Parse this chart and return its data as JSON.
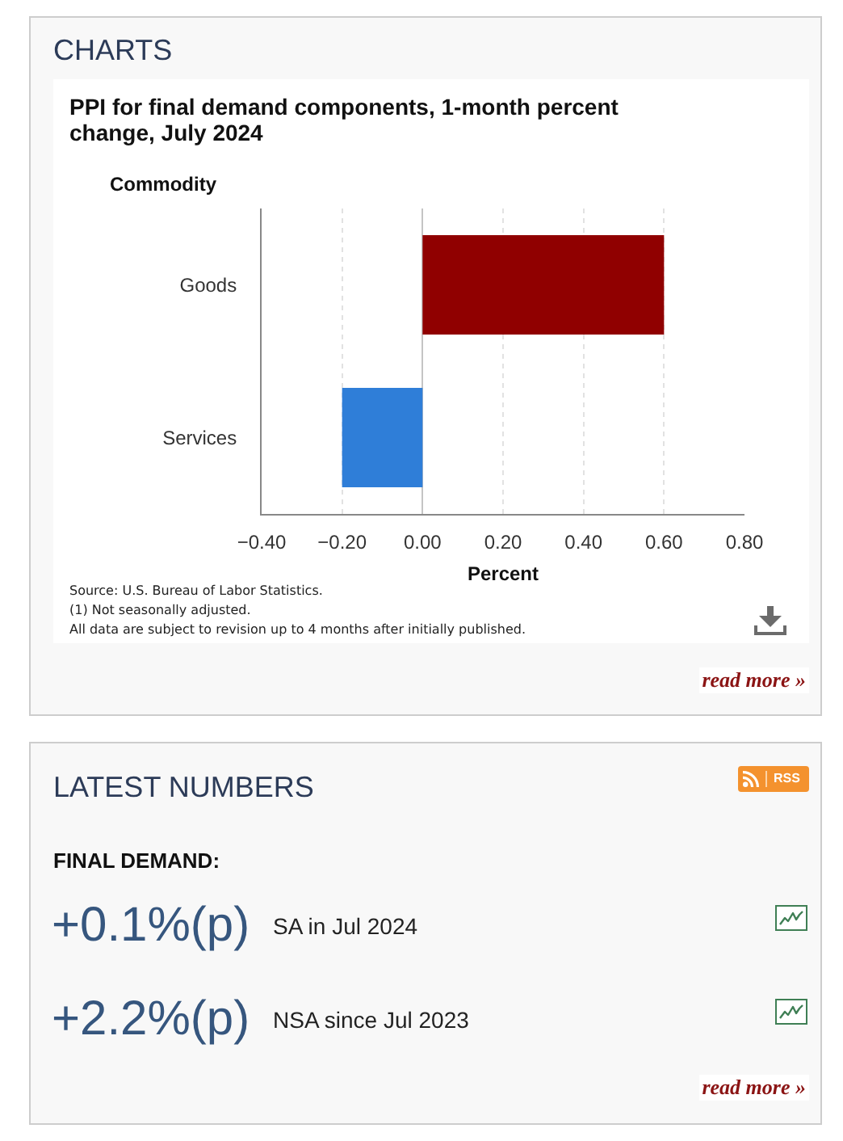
{
  "chart_data": [
    {
      "type": "bar",
      "orientation": "horizontal",
      "title": "PPI for final demand components, 1-month percent change, July 2024",
      "ylabel": "Commodity",
      "xlabel": "Percent",
      "categories": [
        "Goods",
        "Services"
      ],
      "values": [
        0.6,
        -0.2
      ],
      "colors": [
        "#900000",
        "#2f7ed8"
      ],
      "xlim": [
        -0.4,
        0.8
      ],
      "xticks": [
        {
          "value": -0.4,
          "label": "−0.40"
        },
        {
          "value": -0.2,
          "label": "−0.20"
        },
        {
          "value": 0,
          "label": "0.00"
        },
        {
          "value": 0.2,
          "label": "0.20"
        },
        {
          "value": 0.4,
          "label": "0.40"
        },
        {
          "value": 0.6,
          "label": "0.60"
        },
        {
          "value": 0.8,
          "label": "0.80"
        }
      ],
      "grid": "x",
      "annotations": [
        "CHARTS",
        "Source: U.S. Bureau of Labor Statistics.",
        "(1) Not seasonally adjusted.",
        "All data are subject to revision up to 4 months after initially published.",
        "read more »"
      ]
    },
    {
      "type": "other",
      "title": "LATEST NUMBERS",
      "annotations": [
        "RSS",
        "FINAL DEMAND:",
        "+0.1%(p)",
        "SA in Jul 2024",
        "+2.2%(p)",
        "NSA since Jul 2023",
        "read more »"
      ]
    }
  ]
}
